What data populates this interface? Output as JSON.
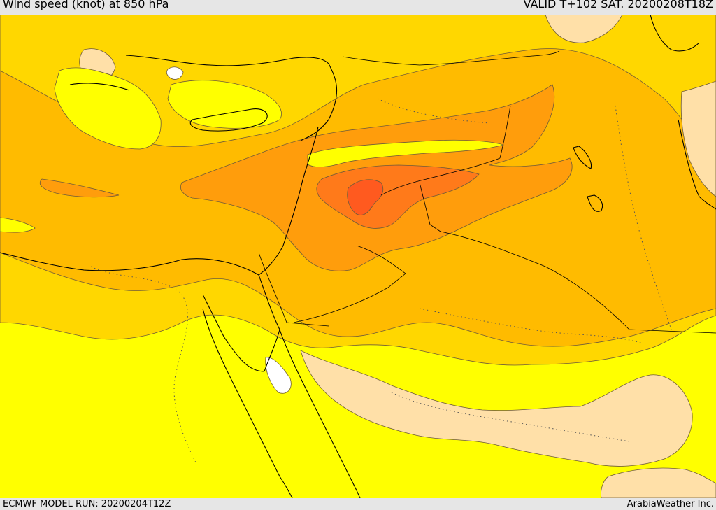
{
  "header": {
    "title": "Wind speed (knot) at 850 hPa",
    "valid": "VALID T+102 SAT. 20200208T18Z"
  },
  "footer": {
    "model_run": "ECMWF MODEL RUN: 20200204T12Z",
    "brand": "ArabiaWeather Inc."
  },
  "map": {
    "region": "Eastern Mediterranean, Levant, Northern Arabia, Egypt",
    "legend": "none shown",
    "colors": {
      "calm_white": "#ffffff",
      "light_tan": "#ffe0a8",
      "yellow": "#ffff00",
      "gold": "#ffd700",
      "amber": "#ffbb00",
      "orange": "#ff9d0c",
      "deep_orange": "#ff7a1a",
      "red_orange": "#ff5a1f",
      "contour_line": "#6e5a3a",
      "coastline": "#000000"
    }
  }
}
